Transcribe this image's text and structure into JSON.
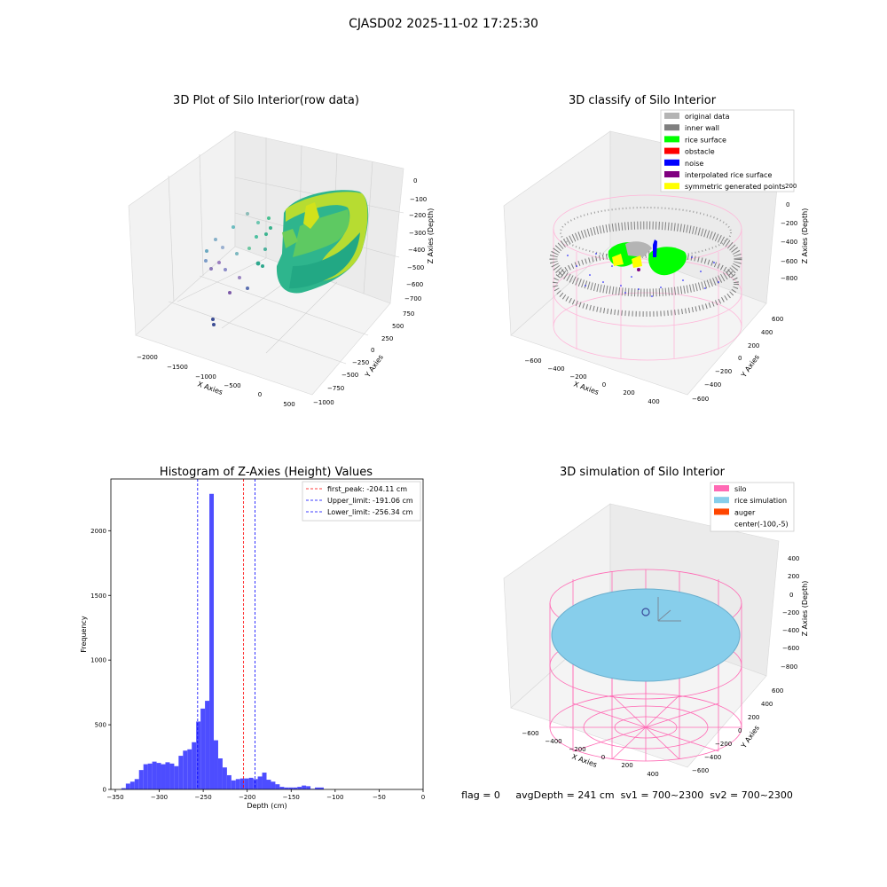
{
  "figure": {
    "suptitle": "CJASD02 2025-11-02 17:25:30",
    "footer": "flag = 0     avgDepth = 241 cm  sv1 = 700~2300  sv2 = 700~2300"
  },
  "panels": {
    "raw": {
      "title": "3D Plot of Silo Interior(row data)",
      "xlabel": "X Axies",
      "ylabel": "Y Axies",
      "zlabel": "Z Axies (Depth)",
      "xticks": [
        "−2000",
        "−1500",
        "−1000",
        "−500",
        "0",
        "500"
      ],
      "yticks": [
        "750",
        "500",
        "250",
        "0",
        "−250",
        "−500",
        "−750",
        "−1000"
      ],
      "zticks": [
        "0",
        "−100",
        "−200",
        "−300",
        "−400",
        "−500",
        "−600",
        "−700"
      ]
    },
    "classify": {
      "title": "3D classify of Silo Interior",
      "xlabel": "X Axies",
      "ylabel": "Y Axies",
      "zlabel": "Z Axies (Depth)",
      "xticks": [
        "−600",
        "−400",
        "−200",
        "0",
        "200",
        "400"
      ],
      "yticks": [
        "600",
        "400",
        "200",
        "0",
        "−200",
        "−400",
        "−600"
      ],
      "zticks": [
        "200",
        "0",
        "−200",
        "−400",
        "−600",
        "−800"
      ],
      "legend": [
        {
          "label": "original data",
          "color": "#b4b4b4"
        },
        {
          "label": "inner wall",
          "color": "#808080"
        },
        {
          "label": "rice surface",
          "color": "#00ff00"
        },
        {
          "label": "obstacle",
          "color": "#ff0000"
        },
        {
          "label": "noise",
          "color": "#0000ff"
        },
        {
          "label": "interpolated rice surface",
          "color": "#800080"
        },
        {
          "label": "symmetric generated points",
          "color": "#ffff00"
        }
      ]
    },
    "simulation": {
      "title": "3D simulation of Silo Interior",
      "xlabel": "X Axies",
      "ylabel": "Y Axies",
      "zlabel": "Z Axies (Depth)",
      "xticks": [
        "−600",
        "−400",
        "−200",
        "0",
        "200",
        "400"
      ],
      "yticks": [
        "600",
        "400",
        "200",
        "0",
        "−200",
        "−400",
        "−600"
      ],
      "zticks": [
        "400",
        "200",
        "0",
        "−200",
        "−400",
        "−600",
        "−800"
      ],
      "legend": [
        {
          "label": "silo",
          "color": "#ff69b4"
        },
        {
          "label": "rice simulation",
          "color": "#87ceeb"
        },
        {
          "label": "auger",
          "color": "#ff4500"
        },
        {
          "label": "center(-100,-5)",
          "color": "none"
        }
      ]
    }
  },
  "chart_data": [
    {
      "type": "bar",
      "title": "Histogram of Z-Axies (Height) Values",
      "xlabel": "Depth (cm)",
      "ylabel": "Frequency",
      "xlim": [
        -355,
        0
      ],
      "ylim": [
        0,
        2400
      ],
      "bar_color": "#4d4dff",
      "xticks": [
        -350,
        -300,
        -250,
        -200,
        -150,
        -100,
        -50,
        0
      ],
      "yticks": [
        0,
        500,
        1000,
        1500,
        2000
      ],
      "bins": {
        "start": -343,
        "width": 5,
        "values": [
          10,
          45,
          60,
          80,
          150,
          195,
          200,
          215,
          205,
          195,
          210,
          200,
          180,
          260,
          300,
          310,
          365,
          525,
          625,
          685,
          2285,
          380,
          240,
          170,
          110,
          70,
          80,
          85,
          85,
          90,
          80,
          100,
          130,
          75,
          60,
          40,
          20,
          15,
          15,
          15,
          20,
          30,
          25,
          5,
          15,
          15
        ]
      },
      "lines": [
        {
          "label": "first_peak: -204.11 cm",
          "x": -204.11,
          "color": "#ff0000"
        },
        {
          "label": "Upper_limit: -191.06 cm",
          "x": -191.06,
          "color": "#0000ff"
        },
        {
          "label": "Lower_limit: -256.34 cm",
          "x": -256.34,
          "color": "#0000ff"
        }
      ],
      "legend_loc": "upper right"
    }
  ]
}
